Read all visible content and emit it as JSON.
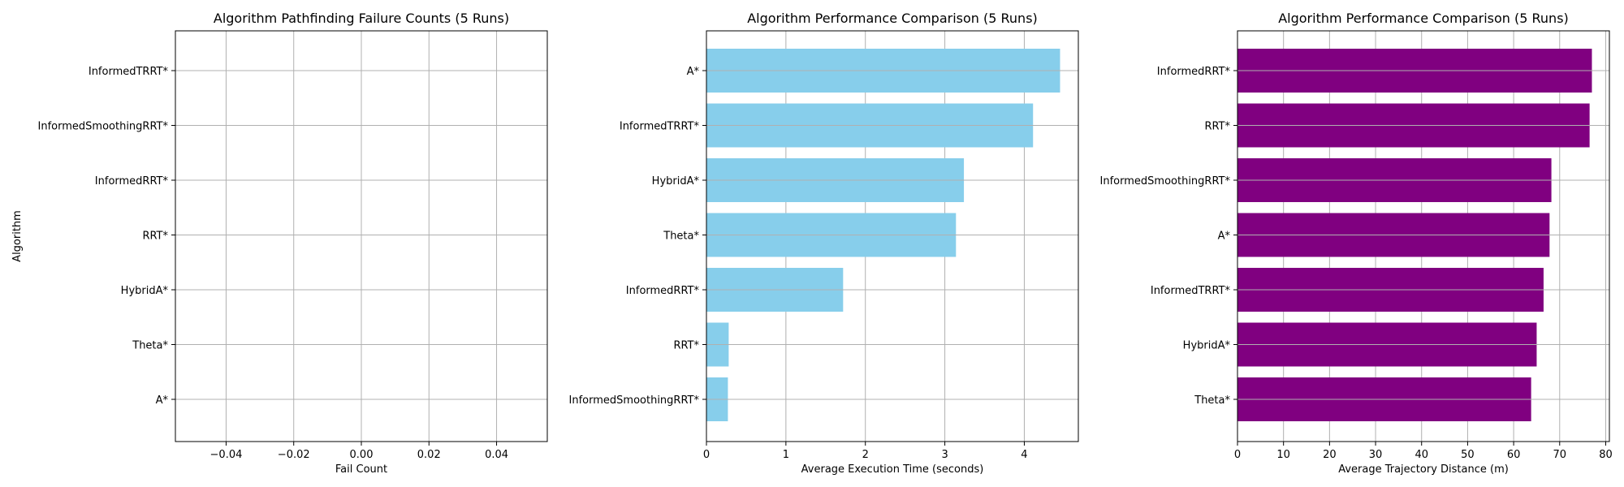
{
  "chart_data": [
    {
      "type": "bar",
      "orientation": "horizontal",
      "title": "Algorithm Pathfinding Failure Counts (5 Runs)",
      "xlabel": "Fail Count",
      "ylabel": "Algorithm",
      "categories": [
        "A*",
        "Theta*",
        "HybridA*",
        "RRT*",
        "InformedRRT*",
        "InformedSmoothingRRT*",
        "InformedTRRT*"
      ],
      "values": [
        0,
        0,
        0,
        0,
        0,
        0,
        0
      ],
      "xlim": [
        -0.055,
        0.055
      ],
      "xticks": [
        -0.04,
        -0.02,
        0.0,
        0.02,
        0.04
      ],
      "xtick_labels": [
        "−0.04",
        "−0.02",
        "0.00",
        "0.02",
        "0.04"
      ],
      "color": "#87ceeb",
      "grid": true
    },
    {
      "type": "bar",
      "orientation": "horizontal",
      "title": "Algorithm Performance Comparison (5 Runs)",
      "xlabel": "Average Execution Time (seconds)",
      "ylabel": "",
      "categories": [
        "InformedSmoothingRRT*",
        "RRT*",
        "InformedRRT*",
        "Theta*",
        "HybridA*",
        "InformedTRRT*",
        "A*"
      ],
      "values": [
        0.27,
        0.28,
        1.72,
        3.14,
        3.24,
        4.11,
        4.45
      ],
      "xlim": [
        0,
        4.68
      ],
      "xticks": [
        0,
        1,
        2,
        3,
        4
      ],
      "xtick_labels": [
        "0",
        "1",
        "2",
        "3",
        "4"
      ],
      "color": "#87ceeb",
      "grid": true
    },
    {
      "type": "bar",
      "orientation": "horizontal",
      "title": "Algorithm Performance Comparison (5 Runs)",
      "xlabel": "Average Trajectory Distance (m)",
      "ylabel": "",
      "categories": [
        "Theta*",
        "HybridA*",
        "InformedTRRT*",
        "A*",
        "InformedSmoothingRRT*",
        "RRT*",
        "InformedRRT*"
      ],
      "values": [
        63.8,
        65.0,
        66.5,
        67.8,
        68.2,
        76.5,
        77.0
      ],
      "xlim": [
        0,
        80.8
      ],
      "xticks": [
        0,
        10,
        20,
        30,
        40,
        50,
        60,
        70,
        80
      ],
      "xtick_labels": [
        "0",
        "10",
        "20",
        "30",
        "40",
        "50",
        "60",
        "70",
        "80"
      ],
      "color": "#800080",
      "grid": true
    }
  ]
}
